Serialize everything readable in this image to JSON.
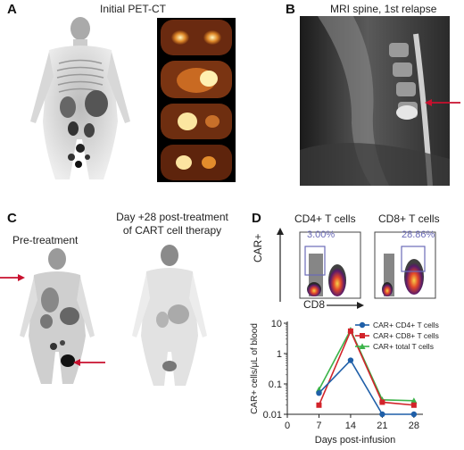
{
  "panels": {
    "A": {
      "letter": "A",
      "title": "Initial PET-CT"
    },
    "B": {
      "letter": "B",
      "title": "MRI spine, 1st relapse"
    },
    "C": {
      "letter": "C",
      "left_title": "Pre-treatment",
      "right_title_line1": "Day +28 post-treatment",
      "right_title_line2": "of CART cell therapy"
    },
    "D": {
      "letter": "D"
    }
  },
  "facs": {
    "cd4_title": "CD4+ T cells",
    "cd8_title": "CD8+ T cells",
    "cd4_pct": "3.00%",
    "cd8_pct": "28.86%",
    "y_label": "CAR+",
    "x_label": "CD8"
  },
  "colors": {
    "arrow": "#c8102e",
    "series_cd4": "#1f5fa8",
    "series_cd8": "#d2232a",
    "series_total": "#3cb34a"
  },
  "chart_data": {
    "type": "line",
    "x": [
      7,
      14,
      21,
      28
    ],
    "xlabel": "Days post-infusion",
    "ylabel": "CAR+ cells/μL of blood",
    "x_ticks": [
      "0",
      "7",
      "14",
      "21",
      "28"
    ],
    "xlim": [
      0,
      30
    ],
    "y_scale": "log",
    "y_ticks": [
      "0.01",
      "0.1",
      "1",
      "10"
    ],
    "ylim": [
      0.01,
      10
    ],
    "legend_position": "top-right",
    "series": [
      {
        "name": "CAR+ CD4+ T cells",
        "marker": "circle",
        "values": [
          0.05,
          0.6,
          0.01,
          0.01
        ]
      },
      {
        "name": "CAR+ CD8+ T cells",
        "marker": "square",
        "values": [
          0.02,
          5.5,
          0.025,
          0.02
        ]
      },
      {
        "name": "CAR+ total T cells",
        "marker": "triangle",
        "values": [
          0.065,
          6.0,
          0.03,
          0.028
        ]
      }
    ]
  }
}
